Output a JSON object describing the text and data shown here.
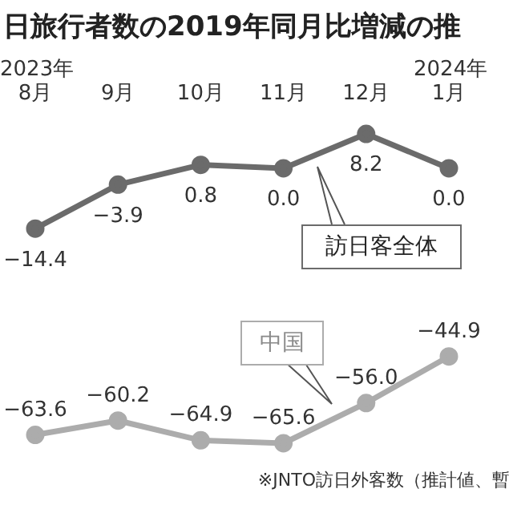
{
  "chart_data": {
    "type": "line",
    "title": "日旅行者数の2019年同月比増減の推",
    "categories": [
      "8月",
      "9月",
      "10月",
      "11月",
      "12月",
      "1月"
    ],
    "series": [
      {
        "name": "訪日客全体",
        "color": "#6b6b6b",
        "values": [
          -14.4,
          -3.9,
          0.8,
          0.0,
          8.2,
          0.0
        ],
        "value_labels": [
          "−14.4",
          "−3.9",
          "0.8",
          "0.0",
          "8.2",
          "0.0"
        ]
      },
      {
        "name": "中国",
        "color": "#acacac",
        "values": [
          -63.6,
          -60.2,
          -64.9,
          -65.6,
          -56.0,
          -44.9
        ],
        "value_labels": [
          "−63.6",
          "−60.2",
          "−64.9",
          "−65.6",
          "−56.0",
          "−44.9"
        ]
      }
    ],
    "marker": "circle",
    "legend": false,
    "grid": false,
    "annotations": [
      "2023年",
      "2024年",
      "※JNTO訪日外客数（推計値、暫"
    ]
  }
}
